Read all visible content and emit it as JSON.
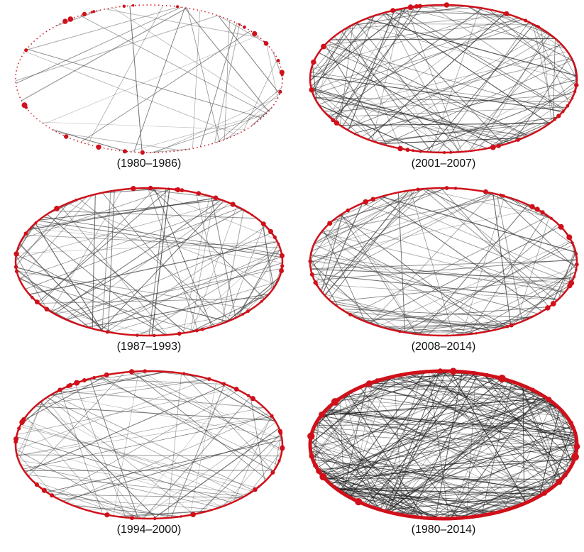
{
  "panels": [
    {
      "caption": "(1980–1986)",
      "density": 38,
      "node_color": "#d0101a",
      "edge_color": "#555555",
      "ring": "dotted"
    },
    {
      "caption": "(2001–2007)",
      "density": 130,
      "node_color": "#d0101a",
      "edge_color": "#333333",
      "ring": "solid"
    },
    {
      "caption": "(1987–1993)",
      "density": 100,
      "node_color": "#d0101a",
      "edge_color": "#444444",
      "ring": "solid"
    },
    {
      "caption": "(2008–2014)",
      "density": 110,
      "node_color": "#d0101a",
      "edge_color": "#444444",
      "ring": "solid"
    },
    {
      "caption": "(1994–2000)",
      "density": 90,
      "node_color": "#d0101a",
      "edge_color": "#444444",
      "ring": "solid"
    },
    {
      "caption": "(1980–2014)",
      "density": 260,
      "node_color": "#d0101a",
      "edge_color": "#222222",
      "ring": "thick"
    }
  ]
}
